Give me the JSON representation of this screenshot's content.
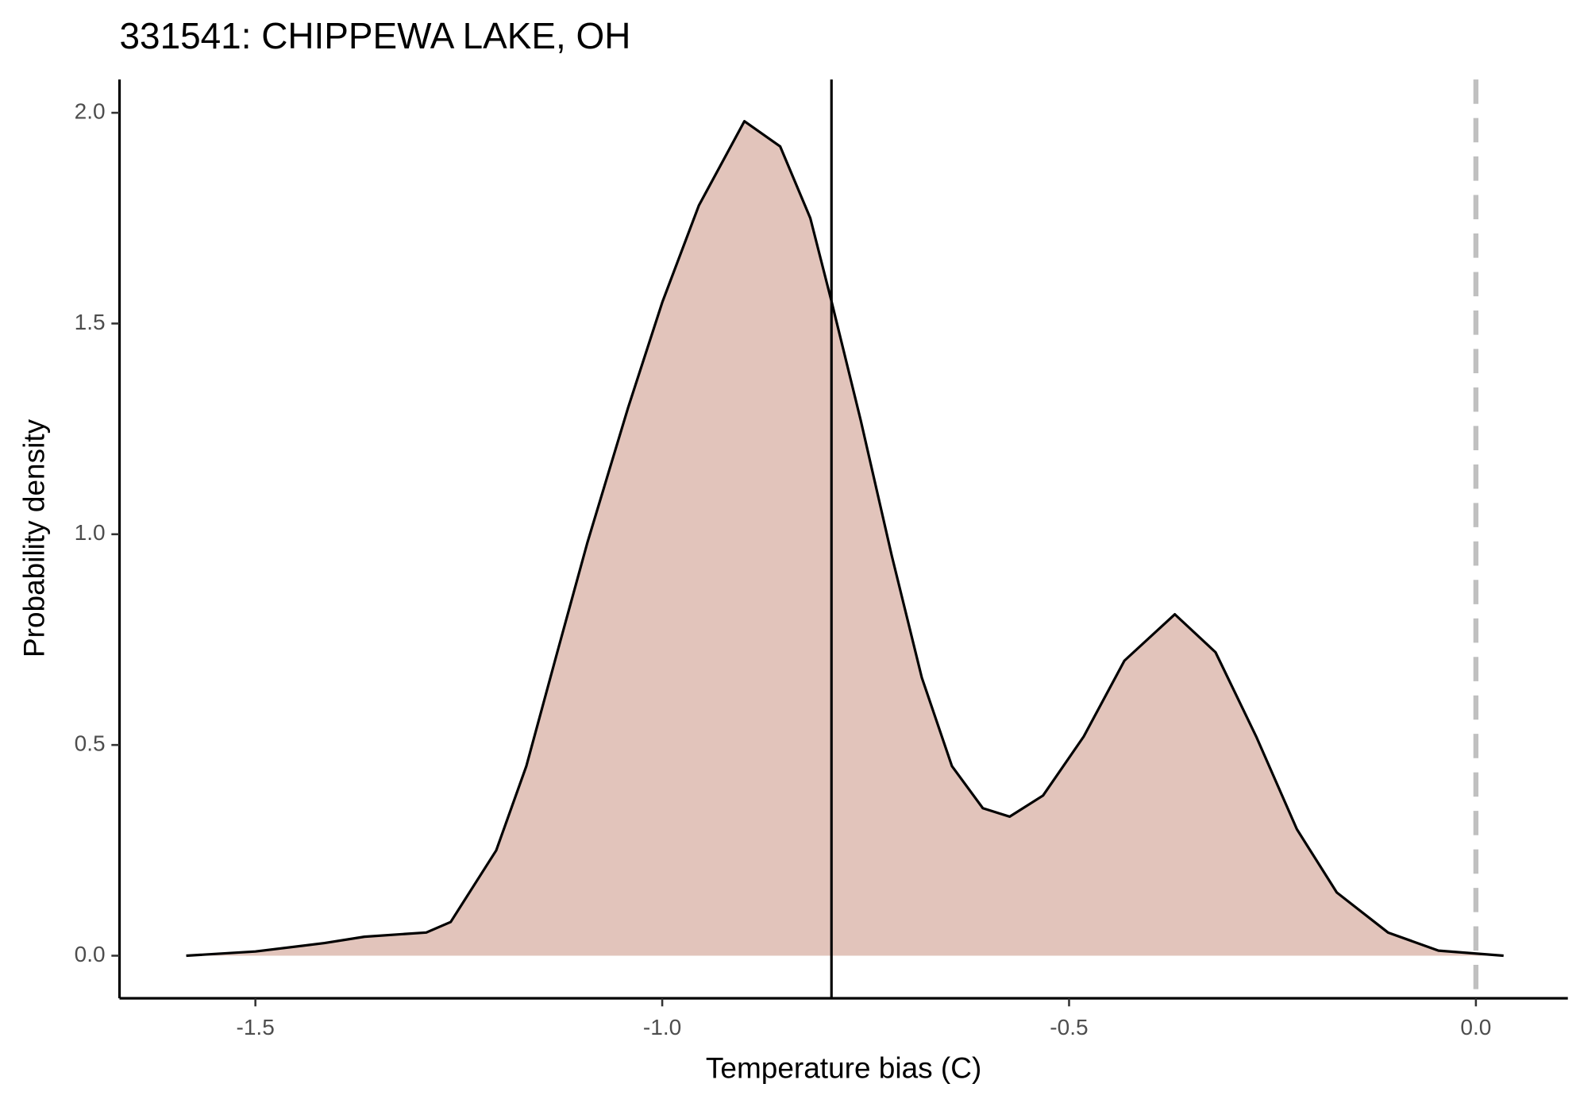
{
  "chart_data": {
    "type": "density",
    "title": "331541: CHIPPEWA LAKE, OH",
    "xlabel": "Temperature bias (C)",
    "ylabel": "Probability density",
    "x": [
      -1.585,
      -1.5,
      -1.415,
      -1.366,
      -1.29,
      -1.26,
      -1.204,
      -1.167,
      -1.129,
      -1.092,
      -1.042,
      -1.0,
      -0.955,
      -0.899,
      -0.855,
      -0.818,
      -0.792,
      -0.756,
      -0.718,
      -0.681,
      -0.644,
      -0.606,
      -0.573,
      -0.532,
      -0.482,
      -0.432,
      -0.37,
      -0.32,
      -0.27,
      -0.22,
      -0.171,
      -0.108,
      -0.046,
      0.034
    ],
    "values": [
      0,
      0.01,
      0.03,
      0.045,
      0.055,
      0.08,
      0.25,
      0.45,
      0.72,
      0.98,
      1.3,
      1.55,
      1.78,
      1.98,
      1.92,
      1.75,
      1.553,
      1.27,
      0.95,
      0.66,
      0.45,
      0.35,
      0.33,
      0.38,
      0.52,
      0.7,
      0.81,
      0.72,
      0.52,
      0.3,
      0.15,
      0.055,
      0.012,
      0
    ],
    "color": "#000000",
    "fill": "#e2c4bb",
    "reference_lines": [
      {
        "x": -0.792,
        "color": "#000000",
        "dashed": false
      },
      {
        "x": 0,
        "color": "#c0c0c0",
        "dashed": true
      }
    ],
    "xlim": [
      -1.667,
      0.113
    ],
    "ylim": [
      -0.101,
      2.079
    ],
    "xticks": [
      -1.5,
      {
        "value": -1,
        "label": "-1.0"
      },
      -0.5,
      {
        "value": 0,
        "label": "0.0"
      }
    ],
    "yticks": [
      {
        "value": 0,
        "label": "0.0"
      },
      0.5,
      {
        "value": 1,
        "label": "1.0"
      },
      1.5,
      {
        "value": 2,
        "label": "2.0"
      }
    ],
    "grid": false
  }
}
